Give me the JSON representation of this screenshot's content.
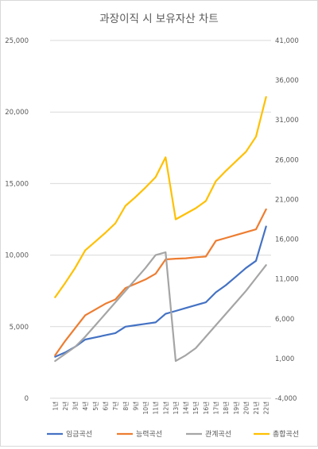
{
  "chart_data": {
    "type": "line",
    "title": "과장이직 시 보유자산 차트",
    "categories": [
      "1년",
      "2년",
      "3년",
      "4년",
      "5년",
      "6년",
      "7년",
      "8년",
      "9년",
      "10년",
      "11년",
      "12년",
      "13년",
      "14년",
      "15년",
      "16년",
      "17년",
      "18년",
      "19년",
      "20년",
      "21년",
      "22년"
    ],
    "y_left": {
      "min": 0,
      "max": 25000,
      "step": 5000,
      "ticks": [
        "0",
        "5,000",
        "10,000",
        "15,000",
        "20,000",
        "25,000"
      ]
    },
    "y_right": {
      "min": -4000,
      "max": 41000,
      "step": 5000,
      "ticks": [
        "-4,000",
        "1,000",
        "6,000",
        "11,000",
        "16,000",
        "21,000",
        "26,000",
        "31,000",
        "36,000",
        "41,000"
      ]
    },
    "grid": true,
    "legend_position": "bottom",
    "series": [
      {
        "name": "임금곡선",
        "axis": "left",
        "color": "#4472C4",
        "values": [
          2900,
          3200,
          3600,
          4100,
          4250,
          4400,
          4550,
          5000,
          5100,
          5200,
          5300,
          5900,
          6100,
          6300,
          6500,
          6700,
          7400,
          7900,
          8500,
          9100,
          9600,
          12000
        ]
      },
      {
        "name": "능력곡선",
        "axis": "left",
        "color": "#ED7D31",
        "values": [
          3000,
          4000,
          4900,
          5800,
          6200,
          6600,
          6900,
          7700,
          8000,
          8300,
          8700,
          9700,
          9750,
          9780,
          9850,
          9900,
          11000,
          11200,
          11400,
          11600,
          11800,
          13200
        ]
      },
      {
        "name": "관계곡선",
        "axis": "left",
        "color": "#A5A5A5",
        "values": [
          2600,
          3100,
          3600,
          4300,
          5100,
          5900,
          6700,
          7500,
          8300,
          9100,
          10000,
          10200,
          2600,
          3000,
          3500,
          4300,
          5100,
          5900,
          6700,
          7500,
          8400,
          9300
        ]
      },
      {
        "name": "총합곡선",
        "axis": "right",
        "color": "#FFC000",
        "values": [
          8700,
          10500,
          12400,
          14600,
          15700,
          16800,
          18000,
          20200,
          21300,
          22500,
          23800,
          26300,
          18500,
          19200,
          19900,
          20800,
          23300,
          24600,
          25800,
          27000,
          28900,
          33900
        ]
      }
    ]
  }
}
